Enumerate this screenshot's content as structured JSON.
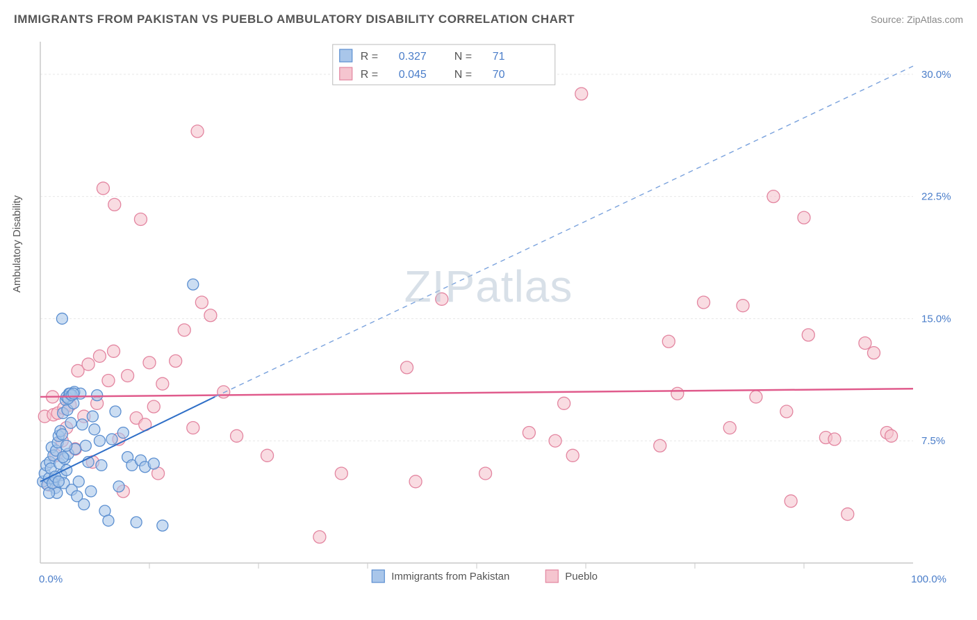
{
  "title": "IMMIGRANTS FROM PAKISTAN VS PUEBLO AMBULATORY DISABILITY CORRELATION CHART",
  "source_label": "Source:",
  "source_name": "ZipAtlas.com",
  "watermark": "ZIPatlas",
  "y_axis_label": "Ambulatory Disability",
  "x_min_label": "0.0%",
  "x_max_label": "100.0%",
  "y_ticks": [
    {
      "v": 7.5,
      "label": "7.5%"
    },
    {
      "v": 15.0,
      "label": "15.0%"
    },
    {
      "v": 22.5,
      "label": "22.5%"
    },
    {
      "v": 30.0,
      "label": "30.0%"
    }
  ],
  "x_tick_vals": [
    12.5,
    25,
    37.5,
    50,
    62.5,
    75,
    87.5
  ],
  "xlim": [
    0,
    100
  ],
  "ylim": [
    0,
    32
  ],
  "background_color": "#ffffff",
  "grid_color": "#e7e7e7",
  "axis_color": "#c9c9c9",
  "value_color": "#4a7dc9",
  "series": {
    "a": {
      "name": "Immigrants from Pakistan",
      "fill": "#a9c6ea",
      "stroke": "#5a8ed0",
      "marker_r": 8,
      "trend": {
        "x1": 0,
        "y1": 5.0,
        "x2": 20,
        "y2": 10.2,
        "ext_x2": 100,
        "ext_y2": 30.5,
        "solid_color": "#2f6fc7",
        "dash_color": "#7aa2dd",
        "width": 2
      },
      "R": "0.327",
      "N": "71",
      "points": [
        [
          0.3,
          5.0
        ],
        [
          0.5,
          5.5
        ],
        [
          0.7,
          6.0
        ],
        [
          0.8,
          4.8
        ],
        [
          1.0,
          5.2
        ],
        [
          1.1,
          6.2
        ],
        [
          1.2,
          5.8
        ],
        [
          1.3,
          7.1
        ],
        [
          1.5,
          6.6
        ],
        [
          1.6,
          5.1
        ],
        [
          1.7,
          4.6
        ],
        [
          1.8,
          6.9
        ],
        [
          1.9,
          4.3
        ],
        [
          2.0,
          7.4
        ],
        [
          2.1,
          7.8
        ],
        [
          2.2,
          6.1
        ],
        [
          2.3,
          8.1
        ],
        [
          2.4,
          5.4
        ],
        [
          2.5,
          7.9
        ],
        [
          2.6,
          9.2
        ],
        [
          2.7,
          4.9
        ],
        [
          2.8,
          6.4
        ],
        [
          2.9,
          10.0
        ],
        [
          3.0,
          5.7
        ],
        [
          3.1,
          9.4
        ],
        [
          3.2,
          6.7
        ],
        [
          3.3,
          10.4
        ],
        [
          3.5,
          8.6
        ],
        [
          3.6,
          4.5
        ],
        [
          3.8,
          9.8
        ],
        [
          3.9,
          10.5
        ],
        [
          4.0,
          7.0
        ],
        [
          4.2,
          4.1
        ],
        [
          4.4,
          5.0
        ],
        [
          4.6,
          10.4
        ],
        [
          4.8,
          8.5
        ],
        [
          5.0,
          3.6
        ],
        [
          5.2,
          7.2
        ],
        [
          5.5,
          6.2
        ],
        [
          2.5,
          15.0
        ],
        [
          5.8,
          4.4
        ],
        [
          6.0,
          9.0
        ],
        [
          6.2,
          8.2
        ],
        [
          6.5,
          10.3
        ],
        [
          6.8,
          7.5
        ],
        [
          7.0,
          6.0
        ],
        [
          7.4,
          3.2
        ],
        [
          7.8,
          2.6
        ],
        [
          8.2,
          7.6
        ],
        [
          8.6,
          9.3
        ],
        [
          9.0,
          4.7
        ],
        [
          9.5,
          8.0
        ],
        [
          10.0,
          6.5
        ],
        [
          3.0,
          10.2
        ],
        [
          3.2,
          10.1
        ],
        [
          3.4,
          10.4
        ],
        [
          10.5,
          6.0
        ],
        [
          11.0,
          2.5
        ],
        [
          11.5,
          6.3
        ],
        [
          12.0,
          5.9
        ],
        [
          13.0,
          6.1
        ],
        [
          14.0,
          2.3
        ],
        [
          17.5,
          17.1
        ],
        [
          3.6,
          10.3
        ],
        [
          3.8,
          10.4
        ],
        [
          1.0,
          4.3
        ],
        [
          1.4,
          4.9
        ],
        [
          1.7,
          5.3
        ],
        [
          2.1,
          5.0
        ],
        [
          2.6,
          6.5
        ],
        [
          3.0,
          7.2
        ]
      ]
    },
    "b": {
      "name": "Pueblo",
      "fill": "#f5c5cf",
      "stroke": "#e385a0",
      "marker_r": 9,
      "trend": {
        "x1": 0,
        "y1": 10.2,
        "x2": 100,
        "y2": 10.7,
        "color": "#e05b8c",
        "width": 2.5
      },
      "R": "0.045",
      "N": "70",
      "points": [
        [
          0.5,
          9.0
        ],
        [
          1.0,
          4.8
        ],
        [
          1.4,
          10.2
        ],
        [
          1.8,
          6.6
        ],
        [
          1.5,
          9.1
        ],
        [
          2.0,
          9.2
        ],
        [
          2.5,
          7.5
        ],
        [
          2.7,
          9.5
        ],
        [
          3.0,
          8.3
        ],
        [
          3.4,
          9.7
        ],
        [
          4.0,
          7.0
        ],
        [
          4.3,
          11.8
        ],
        [
          5.0,
          9.0
        ],
        [
          5.5,
          12.2
        ],
        [
          6.0,
          6.2
        ],
        [
          6.5,
          9.8
        ],
        [
          6.8,
          12.7
        ],
        [
          7.2,
          23.0
        ],
        [
          7.8,
          11.2
        ],
        [
          8.4,
          13.0
        ],
        [
          8.5,
          22.0
        ],
        [
          9.0,
          7.6
        ],
        [
          9.5,
          4.4
        ],
        [
          10.0,
          11.5
        ],
        [
          11.0,
          8.9
        ],
        [
          11.5,
          21.1
        ],
        [
          12.0,
          8.5
        ],
        [
          12.5,
          12.3
        ],
        [
          13.0,
          9.6
        ],
        [
          13.5,
          5.5
        ],
        [
          14.0,
          11.0
        ],
        [
          18.0,
          26.5
        ],
        [
          15.5,
          12.4
        ],
        [
          16.5,
          14.3
        ],
        [
          17.5,
          8.3
        ],
        [
          18.5,
          16.0
        ],
        [
          19.5,
          15.2
        ],
        [
          21.0,
          10.5
        ],
        [
          22.5,
          7.8
        ],
        [
          26.0,
          6.6
        ],
        [
          32.0,
          1.6
        ],
        [
          34.5,
          5.5
        ],
        [
          42.0,
          12.0
        ],
        [
          43.0,
          5.0
        ],
        [
          46.0,
          16.2
        ],
        [
          51.0,
          5.5
        ],
        [
          56.0,
          8.0
        ],
        [
          59.0,
          7.5
        ],
        [
          60.0,
          9.8
        ],
        [
          61.0,
          6.6
        ],
        [
          62.0,
          28.8
        ],
        [
          71.0,
          7.2
        ],
        [
          72.0,
          13.6
        ],
        [
          73.0,
          10.4
        ],
        [
          76.0,
          16.0
        ],
        [
          79.0,
          8.3
        ],
        [
          80.5,
          15.8
        ],
        [
          82.0,
          10.2
        ],
        [
          84.0,
          22.5
        ],
        [
          85.5,
          9.3
        ],
        [
          86.0,
          3.8
        ],
        [
          87.5,
          21.2
        ],
        [
          88.0,
          14.0
        ],
        [
          90.0,
          7.7
        ],
        [
          91.0,
          7.6
        ],
        [
          92.5,
          3.0
        ],
        [
          94.5,
          13.5
        ],
        [
          95.5,
          12.9
        ],
        [
          97.0,
          8.0
        ],
        [
          97.5,
          7.8
        ]
      ]
    }
  },
  "legend": {
    "a_label": "Immigrants from Pakistan",
    "b_label": "Pueblo"
  },
  "corr_box": {
    "r_label": "R  =",
    "n_label": "N  ="
  }
}
